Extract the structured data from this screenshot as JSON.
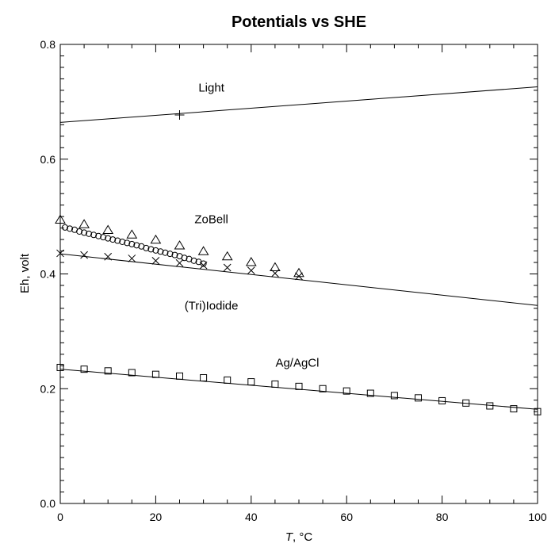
{
  "chart_data": {
    "type": "scatter",
    "title": "Potentials vs SHE",
    "xlabel": "T, °C",
    "xlabel_var": "T",
    "xlabel_rest": ", °C",
    "ylabel": "Eh, volt",
    "xlim": [
      0,
      100
    ],
    "ylim": [
      0.0,
      0.8
    ],
    "x_ticks": [
      "0",
      "20",
      "40",
      "60",
      "80",
      "100"
    ],
    "y_ticks": [
      "0.0",
      "0.2",
      "0.4",
      "0.6",
      "0.8"
    ],
    "grid": false,
    "annotations": [
      {
        "text": "Light",
        "x": 30,
        "y": 0.725
      },
      {
        "text": "ZoBell",
        "x": 30,
        "y": 0.495
      },
      {
        "text": "(Tri)Iodide",
        "x": 30,
        "y": 0.345
      },
      {
        "text": "Ag/AgCl",
        "x": 48,
        "y": 0.245
      }
    ],
    "lines": [
      {
        "label": "Light",
        "x": [
          0,
          100
        ],
        "y": [
          0.664,
          0.726
        ]
      },
      {
        "label": "(Tri)Iodide",
        "x": [
          0,
          100
        ],
        "y": [
          0.435,
          0.345
        ]
      },
      {
        "label": "Ag/AgCl",
        "x": [
          0,
          100
        ],
        "y": [
          0.234,
          0.164
        ]
      }
    ],
    "series": [
      {
        "marker": "plus",
        "x": [
          25
        ],
        "y": [
          0.677
        ]
      },
      {
        "marker": "triangle",
        "x": [
          0,
          5,
          10,
          15,
          20,
          25,
          30,
          35,
          40,
          45,
          50
        ],
        "y": [
          0.494,
          0.486,
          0.476,
          0.468,
          0.459,
          0.449,
          0.439,
          0.43,
          0.42,
          0.411,
          0.401
        ]
      },
      {
        "marker": "circle",
        "x": [
          1,
          2,
          3,
          4,
          5,
          6,
          7,
          8,
          9,
          10,
          11,
          12,
          13,
          14,
          15,
          16,
          17,
          18,
          19,
          20,
          21,
          22,
          23,
          24,
          25,
          26,
          27,
          28,
          29,
          30
        ],
        "y": [
          0.481,
          0.479,
          0.477,
          0.474,
          0.472,
          0.47,
          0.468,
          0.466,
          0.464,
          0.462,
          0.46,
          0.458,
          0.456,
          0.454,
          0.452,
          0.45,
          0.448,
          0.445,
          0.443,
          0.441,
          0.439,
          0.437,
          0.435,
          0.433,
          0.431,
          0.428,
          0.426,
          0.423,
          0.421,
          0.418
        ]
      },
      {
        "marker": "x",
        "x": [
          0,
          5,
          10,
          15,
          20,
          25,
          30,
          35,
          40,
          45,
          50
        ],
        "y": [
          0.436,
          0.433,
          0.43,
          0.427,
          0.423,
          0.419,
          0.415,
          0.411,
          0.406,
          0.401,
          0.396
        ]
      },
      {
        "marker": "square",
        "x": [
          0,
          5,
          10,
          15,
          20,
          25,
          30,
          35,
          40,
          45,
          50,
          55,
          60,
          65,
          70,
          75,
          80,
          85,
          90,
          95,
          100
        ],
        "y": [
          0.237,
          0.234,
          0.231,
          0.228,
          0.225,
          0.222,
          0.219,
          0.215,
          0.212,
          0.208,
          0.204,
          0.2,
          0.196,
          0.192,
          0.188,
          0.184,
          0.179,
          0.175,
          0.17,
          0.165,
          0.16
        ]
      }
    ]
  }
}
